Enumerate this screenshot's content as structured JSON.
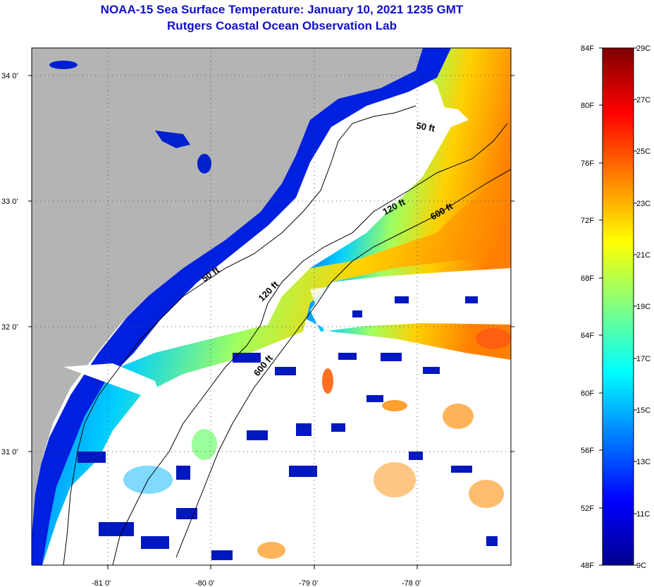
{
  "title": "NOAA-15 Sea Surface Temperature:  January 10, 2021 1235 GMT",
  "subtitle": "Rutgers Coastal Ocean Observation Lab",
  "longitude_ticks": [
    "-81 0'",
    "-80 0'",
    "-79 0'",
    "-78 0'"
  ],
  "latitude_ticks": [
    "34 0'",
    "33 0'",
    "32 0'",
    "31 0'"
  ],
  "colorbar": {
    "fahrenheit_labels": [
      "84F",
      "80F",
      "76F",
      "72F",
      "68F",
      "64F",
      "60F",
      "56F",
      "52F",
      "48F"
    ],
    "celsius_labels": [
      "29C",
      "27C",
      "25C",
      "23C",
      "21C",
      "19C",
      "17C",
      "15C",
      "13C",
      "11C",
      "9C"
    ],
    "colors": [
      "#00008f",
      "#0000ff",
      "#0080ff",
      "#00ffff",
      "#80ff80",
      "#ffff00",
      "#ff8000",
      "#ff0000",
      "#800000"
    ]
  },
  "contour_labels": [
    "50 ft",
    "50 ft",
    "120 ft",
    "120 ft",
    "600 ft",
    "600 ft"
  ],
  "colors": {
    "land": "#b4b4b4",
    "no_data": "#ffffff",
    "title": "#1010c8"
  }
}
